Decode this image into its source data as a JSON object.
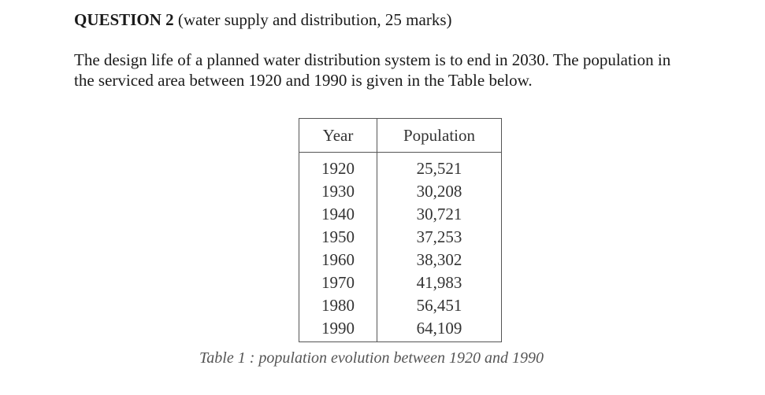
{
  "heading": {
    "label": "QUESTION 2",
    "detail": "(water supply and distribution, 25 marks)"
  },
  "body": {
    "line1": "The design life of a planned water distribution system is to end in 2030. The population in",
    "line2": "the serviced area between 1920 and 1990 is given in the Table below."
  },
  "table": {
    "headers": [
      "Year",
      "Population"
    ],
    "rows": [
      [
        "1920",
        "25,521"
      ],
      [
        "1930",
        "30,208"
      ],
      [
        "1940",
        "30,721"
      ],
      [
        "1950",
        "37,253"
      ],
      [
        "1960",
        "38,302"
      ],
      [
        "1970",
        "41,983"
      ],
      [
        "1980",
        "56,451"
      ],
      [
        "1990",
        "64,109"
      ]
    ],
    "caption": "Table 1 : population evolution between 1920 and 1990"
  }
}
